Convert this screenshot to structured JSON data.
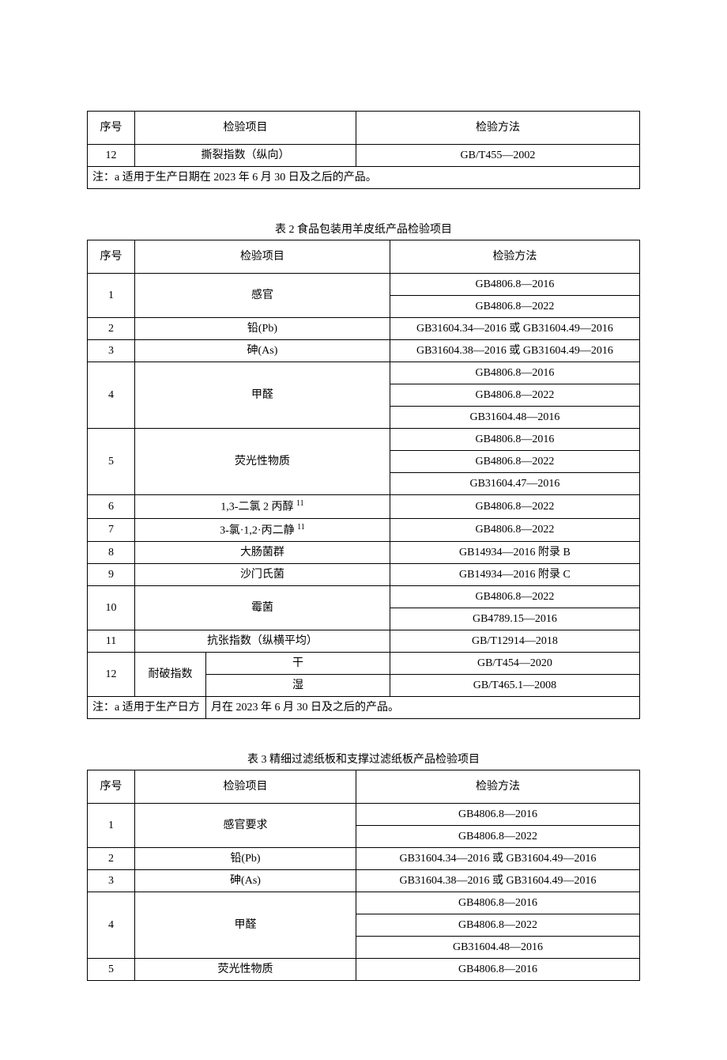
{
  "table1": {
    "headers": {
      "seq": "序号",
      "item": "检验项目",
      "method": "检验方法"
    },
    "rows": [
      {
        "seq": "12",
        "item": "撕裂指数（纵向）",
        "method": "GB/T455—2002"
      }
    ],
    "note": "注：a 适用于生产日期在 2023 年 6 月 30 日及之后的产品。"
  },
  "table2": {
    "title": "表 2 食品包装用羊皮纸产品检验项目",
    "headers": {
      "seq": "序号",
      "item": "检验项目",
      "method": "检验方法"
    },
    "rows": {
      "r1": {
        "seq": "1",
        "item": "感官",
        "method1": "GB4806.8—2016",
        "method2": "GB4806.8—2022"
      },
      "r2": {
        "seq": "2",
        "item": "铅(Pb)",
        "method": "GB31604.34—2016 或 GB31604.49—2016"
      },
      "r3": {
        "seq": "3",
        "item": "砷(As)",
        "method": "GB31604.38—2016 或 GB31604.49—2016"
      },
      "r4": {
        "seq": "4",
        "item": "甲醛",
        "method1": "GB4806.8—2016",
        "method2": "GB4806.8—2022",
        "method3": "GB31604.48—2016"
      },
      "r5": {
        "seq": "5",
        "item": "荧光性物质",
        "method1": "GB4806.8—2016",
        "method2": "GB4806.8—2022",
        "method3": "GB31604.47—2016"
      },
      "r6": {
        "seq": "6",
        "item": "1,3-二氯 2 丙醇 ",
        "sup": "11",
        "method": "GB4806.8—2022"
      },
      "r7": {
        "seq": "7",
        "item": "3-氯·1,2·丙二静 ",
        "sup": "11",
        "method": "GB4806.8—2022"
      },
      "r8": {
        "seq": "8",
        "item": "大肠菌群",
        "method": "GB14934—2016 附录 B"
      },
      "r9": {
        "seq": "9",
        "item": "沙门氏菌",
        "method": "GB14934—2016 附录 C"
      },
      "r10": {
        "seq": "10",
        "item": "霉菌",
        "method1": "GB4806.8—2022",
        "method2": "GB4789.15—2016"
      },
      "r11": {
        "seq": "11",
        "item": "抗张指数（纵横平均）",
        "method": "GB/T12914—2018"
      },
      "r12": {
        "seq": "12",
        "item": "耐破指数",
        "sub1": "干",
        "sub1_method": "GB/T454—2020",
        "sub2": "湿",
        "sub2_method": "GB/T465.1—2008"
      }
    },
    "note_left": "注：a 适用于生产日方",
    "note_right": "月在 2023 年 6 月 30 日及之后的产品。"
  },
  "table3": {
    "title": "表 3 精细过滤纸板和支撑过滤纸板产品检验项目",
    "headers": {
      "seq": "序号",
      "item": "检验项目",
      "method": "检验方法"
    },
    "rows": {
      "r1": {
        "seq": "1",
        "item": "感官要求",
        "method1": "GB4806.8—2016",
        "method2": "GB4806.8—2022"
      },
      "r2": {
        "seq": "2",
        "item": "铅(Pb)",
        "method": "GB31604.34—2016 或 GB31604.49—2016"
      },
      "r3": {
        "seq": "3",
        "item": "砷(As)",
        "method": "GB31604.38—2016 或 GB31604.49—2016"
      },
      "r4": {
        "seq": "4",
        "item": "甲醛",
        "method1": "GB4806.8—2016",
        "method2": "GB4806.8—2022",
        "method3": "GB31604.48—2016"
      },
      "r5": {
        "seq": "5",
        "item": "荧光性物质",
        "method": "GB4806.8—2016"
      }
    }
  }
}
